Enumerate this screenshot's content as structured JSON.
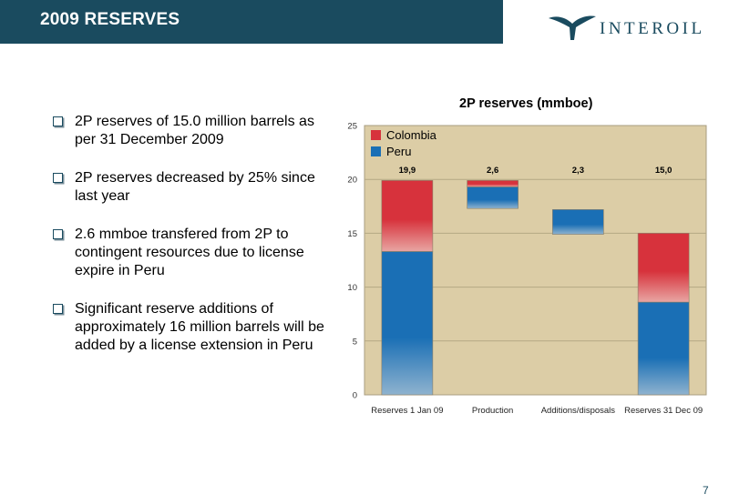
{
  "header": {
    "title": "2009 RESERVES"
  },
  "logo": {
    "text": "INTEROIL"
  },
  "bullets": [
    "2P reserves of 15.0 million barrels as per 31 December 2009",
    "2P reserves decreased by 25% since last year",
    "2.6 mmboe transfered from 2P to contingent resources due to license expire in Peru",
    "Significant reserve additions of approximately 16 million barrels will be added by a license extension in Peru"
  ],
  "chart_data": {
    "type": "bar",
    "title": "2P reserves (mmboe)",
    "categories": [
      "Reserves 1 Jan 09",
      "Production",
      "Additions/disposals",
      "Reserves 31 Dec 09"
    ],
    "series": [
      {
        "name": "Colombia",
        "color": "#d7323c",
        "ranges": [
          [
            13.3,
            19.9
          ],
          [
            19.3,
            19.9
          ],
          null,
          [
            8.6,
            15.0
          ]
        ]
      },
      {
        "name": "Peru",
        "color": "#1a6fb5",
        "ranges": [
          [
            0,
            13.3
          ],
          [
            17.3,
            19.3
          ],
          [
            14.9,
            17.2
          ],
          [
            0,
            8.6
          ]
        ]
      }
    ],
    "data_labels": [
      "19,9",
      "2,6",
      "2,3",
      "15,0"
    ],
    "ylim": [
      0,
      25
    ],
    "yticks": [
      "0",
      "5",
      "10",
      "15",
      "20",
      "25"
    ],
    "legend": "top-left",
    "grid": true
  },
  "footer": {
    "page": "7"
  },
  "colors": {
    "brand": "#1a4b5f",
    "plot_bg": "#dccda6"
  }
}
